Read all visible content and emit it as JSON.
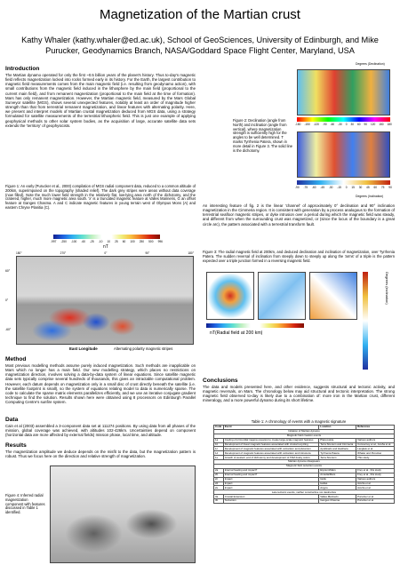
{
  "header": {
    "title": "Magnetization of the Martian crust",
    "authors": "Kathy Whaler (kathy.whaler@ed.ac.uk), School of GeoSciences, University of Edinburgh, and Mike Purucker, Geodynamics Branch, NASA/Goddard Space Flight Center, Maryland, USA"
  },
  "introduction": {
    "heading": "Introduction",
    "text": "The Martian dynamo operated for only the first ~0.5 billion years of the planet's history. Thus to-day's magnetic field reflects magnetization locked into rocks formed early in its history. For the Earth, the largest contribution to magnetic field measurements comes from the main magnetic field (i.e. resulting from geodynamo action), with small contributions from the magnetic field induced in the lithosphere by the main field (proportional to the current main field), and from remanent magnetization (proportional to the main field at the time of formation). Mars has only remanent magnetization. However, the Martian magnetic field, measured by the Mars Global Surveyor satellite (MGS), shows several unexpected features, notably at least an order of magnitude higher strength than that from terrestrial remanent magnetization, and linear features with alternating polarity. Here, we present and interpret models of Martian crustal magnetization deduced from MGS data, using a strategy formulated for satellite measurements of the terrestrial lithospheric field. This is just one example of applying geophysical methods to other solar system bodies, as the acquisition of large, accurate satellite data sets extends the 'territory' of geophysicists."
  },
  "figure1": {
    "caption": "Figure 1: An early (Purucker et al., 2000) compilation of MGS radial component data, reduced to a common altitude of 200km, superimposed on the topography (shaded relief). The dark grey stripes were areas without data coverage (now filled). Note the much lower field strength in the relatively flat, low-lying area north of the dichotomy, and the cratered, higher, much more magnetic area south. 'x' is a truncated magnetic feature at Valles Marineris, G an offset feature at Ganges Chasma. A and C indicate magnetic features in young terrain west of Olympus Mons (A) and eastern Chryse Planitia (C).",
    "colorbar_ticks": [
      "-997",
      "-250",
      "-100",
      "-60",
      "-25",
      "-10",
      "10",
      "25",
      "60",
      "100",
      "250",
      "500",
      "996"
    ],
    "colorbar_unit": "nT",
    "lon_labels": [
      "180°",
      "270°",
      "0°",
      "90°",
      "180°"
    ],
    "lat_labels": [
      "60°",
      "0°",
      "-60°"
    ],
    "xlabel": "East Longitude",
    "note": "Alternating polarity magnetic stripes"
  },
  "method": {
    "heading": "Method",
    "text": "Most previous modelling methods assume purely induced magnetization. Such methods are inapplicable on Mars which no longer has a main field. Our new modelling strategy, which places no restrictions on magnetization direction, involves solving a data-by-data system of linear equations. Since satellite magnetic data sets typically comprise several hundreds of thousands, this gives an intractable computational problem. However, each datum depends on magnetization only in a small disc of crust directly beneath the satellite (i.e. the satellite footprint is small), so the system of equations relating model to data is numerically sparse. The code to calculate the sparse matrix elements parallelizes efficiently, and we use an iterative conjugate gradient technique to find the solution. Results shown here were obtained using 8 processors on Edinburgh Parallel Computing Centre's sunfire system."
  },
  "data_section": {
    "heading": "Data",
    "text": "Cain et al (2003) assembled a 3-component data set at 111274 positions. By using data from all phases of the mission, global coverage was achieved, with altitudes 102-426km. Uncertainties depend on component (horizontal data are more affected by external fields) mission phase, local time, and altitude."
  },
  "results": {
    "heading": "Results",
    "text": "The magnetization amplitude we deduce depends on the misfit to the data, but the magnetization pattern is robust. Thus we focus here on the direction and relative strength of magnetization."
  },
  "figure4": {
    "caption": "Figure 4: Inferred radial magnetization component with features discussed in Table 1 identified."
  },
  "figure2": {
    "caption": "Figure 2: Declination (angle from North) and inclination (angle from vertical), where magnetization strength is sufficiently high for the angles to be well determined. T marks Tyrrhenia Patera, shown in more detail in Figure 3. The solid line is the dichotomy.",
    "declination_label": "Degrees (Declination)",
    "declination_ticks": [
      "-180",
      "-150",
      "-120",
      "-90",
      "-60",
      "-30",
      "0",
      "30",
      "60",
      "90",
      "120",
      "150",
      "180"
    ],
    "inclination_label": "Degrees (Inclination)",
    "inclination_ticks": [
      "-90",
      "-75",
      "-60",
      "-45",
      "-30",
      "-15",
      "0",
      "15",
      "30",
      "45",
      "60",
      "75",
      "90"
    ]
  },
  "discussion": {
    "text": "An interesting feature of fig. 2 is the linear 'channel' of approximately 0° declination and 90° inclination magnetization in the Cimmeria region. It is consistent with generation by a process analogous to the formation of terrestrial seafloor magnetic stripes, or dyke intrusion over a period during which the magnetic field was steady, and different from when the surrounding crust was magnetized, or (since the locus of the boundary is a great circle arc), the pattern associated with a terrestrial transform fault."
  },
  "figure3": {
    "caption": "Figure 3: The radial magnetic field at 200km, and deduced declination and inclination of magnetization, over Tyrrhenia Patera. The sudden reversal of inclination from steeply down to steeply up along the 'arms' of a triple is the pattern expected over a triple junction formed in a reversing magnetic field.",
    "field_label": "nT(Radial field at 200 km)",
    "inclination_label": "Degrees (inclination)"
  },
  "conclusions": {
    "heading": "Conclusions",
    "text": "The data and models presented here, and other evidence, suggests structural and tectonic activity, and magnetic reversals, on Mars. The chronology below may aid structural and tectonic interpretation. The strong magnetic field observed to-day is likely due to a combination of: more iron in the Martian crust, different mineralogy, and a more powerful dynamo during its short lifetime."
  },
  "table": {
    "title": "Table 1: A chronology of events with a magnetic signature",
    "header": [
      "Code",
      "Event",
      "Location",
      "Reference"
    ],
    "rows": [
      [
        "Initiation of Martian dynamo"
      ],
      [
        "Magnetic field creation events"
      ],
      [
        "1a",
        "Cooling of primordial magma ocean(s) to create large-scale magnetic features",
        "Planet-wide",
        "Various authors"
      ],
      [
        "1b",
        "Development of linear magnetic features associated with crustal recycling",
        "Terra Sirenum and Cimmeria",
        "Connerney et al., Acuña et al."
      ],
      [
        "1c",
        "Development of magnetic features associated with volcanism and plutonism",
        "Apollinaris and Hadriaca",
        "Langlais et al."
      ],
      [
        "1d",
        "Development of magnetic features associated with volcanism and intrusions",
        "Tyrrhenia Patera",
        "Whaler and Purucker"
      ],
      [
        "1e",
        "Growth of western end of dichotomy and development of TAM dusky colors",
        "Terra Sirenum",
        "This study"
      ],
      [
        "Martian dynamo disappears"
      ],
      [
        "Magnetic field reduction events"
      ],
      [
        "2a",
        "Internal heating and impact?",
        "Elysium/Mars",
        "Frey et al., this study"
      ],
      [
        "2b",
        "Internal heating and impact?",
        "Arcadia/Mars",
        "Frey et al., this study"
      ],
      [
        "2c",
        "Impact",
        "Isidis",
        "Various authors"
      ],
      [
        "2d",
        "Impact",
        "Hellas",
        "Acuña et al."
      ],
      [
        "2e",
        "Impact",
        "Argyre",
        "Acuña et al."
      ],
      [
        "Late tectonic events, neither constructive nor destructive"
      ],
      [
        "3a",
        "Crustal Extension",
        "Valles Marineris",
        "Purucker et al."
      ],
      [
        "3b",
        "Tectonism",
        "Ganges Chasma",
        "Purucker et al."
      ]
    ]
  }
}
